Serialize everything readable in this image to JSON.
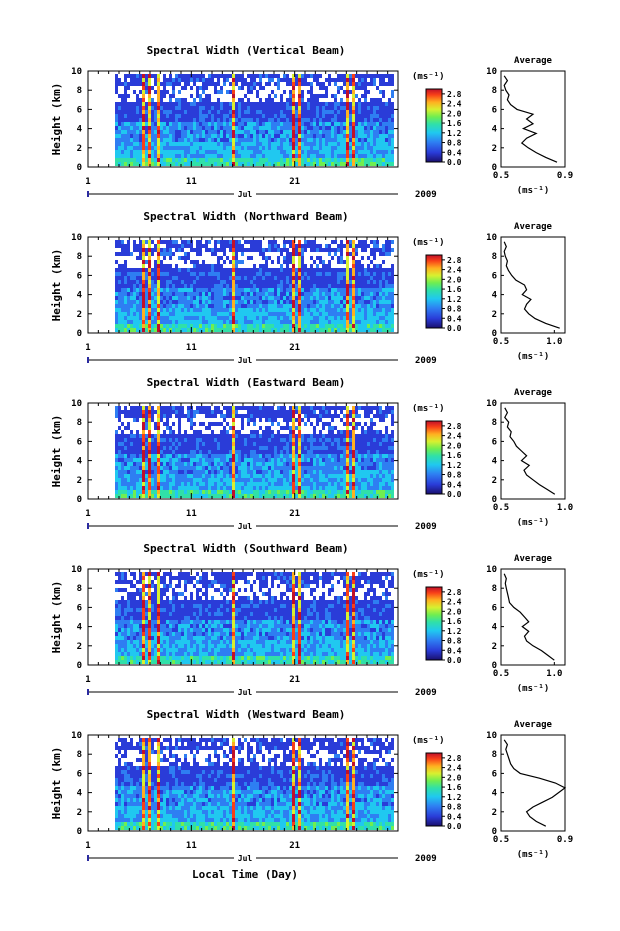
{
  "figure": {
    "year": "2009",
    "month": "Jul",
    "x_axis_title": "Local Time (Day)",
    "y_axis_title": "Height (km)",
    "colorbar_unit": "(ms⁻¹)",
    "average_title": "Average",
    "average_unit": "(ms⁻¹)"
  },
  "chart_data": [
    {
      "type": "heatmap",
      "title": "Spectral Width (Vertical Beam)",
      "xlabel": "",
      "ylabel": "Height (km)",
      "xlim": [
        1,
        31
      ],
      "ylim": [
        0,
        10
      ],
      "x_ticks": [
        "1",
        "11",
        "21"
      ],
      "y_ticks": [
        "0",
        "2",
        "4",
        "6",
        "8",
        "10"
      ],
      "colorbar_ticks": [
        "0.0",
        "0.4",
        "0.8",
        "1.2",
        "1.6",
        "2.0",
        "2.4",
        "2.8"
      ],
      "colorbar_range": [
        0,
        3.0
      ],
      "average_profile": {
        "type": "line",
        "title": "Average",
        "xlim": [
          0.5,
          0.9
        ],
        "x_ticks": [
          "0.5",
          "0.9"
        ],
        "xlabel": "(ms⁻¹)",
        "height": [
          0.5,
          1,
          1.5,
          2,
          2.5,
          3,
          3.5,
          4,
          4.5,
          5,
          5.5,
          6,
          6.5,
          7,
          7.5,
          8,
          8.5,
          9,
          9.5
        ],
        "value": [
          0.85,
          0.78,
          0.72,
          0.67,
          0.63,
          0.66,
          0.72,
          0.64,
          0.7,
          0.66,
          0.7,
          0.6,
          0.56,
          0.54,
          0.55,
          0.53,
          0.52,
          0.54,
          0.52
        ]
      }
    },
    {
      "type": "heatmap",
      "title": "Spectral Width (Northward Beam)",
      "xlabel": "",
      "ylabel": "Height (km)",
      "xlim": [
        1,
        31
      ],
      "ylim": [
        0,
        10
      ],
      "x_ticks": [
        "1",
        "11",
        "21"
      ],
      "y_ticks": [
        "0",
        "2",
        "4",
        "6",
        "8",
        "10"
      ],
      "colorbar_ticks": [
        "0.0",
        "0.4",
        "0.8",
        "1.2",
        "1.6",
        "2.0",
        "2.4",
        "2.8"
      ],
      "colorbar_range": [
        0,
        3.0
      ],
      "average_profile": {
        "type": "line",
        "title": "Average",
        "xlim": [
          0.5,
          1.1
        ],
        "x_ticks": [
          "0.5",
          "1.0"
        ],
        "xlabel": "(ms⁻¹)",
        "height": [
          0.5,
          1,
          1.5,
          2,
          2.5,
          3,
          3.5,
          4,
          4.5,
          5,
          5.5,
          6,
          6.5,
          7,
          7.5,
          8,
          8.5,
          9,
          9.5
        ],
        "value": [
          1.05,
          0.92,
          0.82,
          0.76,
          0.72,
          0.74,
          0.78,
          0.7,
          0.74,
          0.72,
          0.64,
          0.6,
          0.57,
          0.55,
          0.56,
          0.54,
          0.53,
          0.55,
          0.53
        ]
      }
    },
    {
      "type": "heatmap",
      "title": "Spectral Width (Eastward Beam)",
      "xlabel": "",
      "ylabel": "Height (km)",
      "xlim": [
        1,
        31
      ],
      "ylim": [
        0,
        10
      ],
      "x_ticks": [
        "1",
        "11",
        "21"
      ],
      "y_ticks": [
        "0",
        "2",
        "4",
        "6",
        "8",
        "10"
      ],
      "colorbar_ticks": [
        "0.0",
        "0.4",
        "0.8",
        "1.2",
        "1.6",
        "2.0",
        "2.4",
        "2.8"
      ],
      "colorbar_range": [
        0,
        3.0
      ],
      "average_profile": {
        "type": "line",
        "title": "Average",
        "xlim": [
          0.5,
          1.0
        ],
        "x_ticks": [
          "0.5",
          "1.0"
        ],
        "xlabel": "(ms⁻¹)",
        "height": [
          0.5,
          1,
          1.5,
          2,
          2.5,
          3,
          3.5,
          4,
          4.5,
          5,
          5.5,
          6,
          6.5,
          7,
          7.5,
          8,
          8.5,
          9,
          9.5
        ],
        "value": [
          0.92,
          0.86,
          0.8,
          0.75,
          0.7,
          0.68,
          0.72,
          0.66,
          0.7,
          0.66,
          0.62,
          0.6,
          0.57,
          0.58,
          0.55,
          0.56,
          0.53,
          0.55,
          0.53
        ]
      }
    },
    {
      "type": "heatmap",
      "title": "Spectral Width (Southward Beam)",
      "xlabel": "",
      "ylabel": "Height (km)",
      "xlim": [
        1,
        31
      ],
      "ylim": [
        0,
        10
      ],
      "x_ticks": [
        "1",
        "11",
        "21"
      ],
      "y_ticks": [
        "0",
        "2",
        "4",
        "6",
        "8",
        "10"
      ],
      "colorbar_ticks": [
        "0.0",
        "0.4",
        "0.8",
        "1.2",
        "1.6",
        "2.0",
        "2.4",
        "2.8"
      ],
      "colorbar_range": [
        0,
        3.0
      ],
      "average_profile": {
        "type": "line",
        "title": "Average",
        "xlim": [
          0.5,
          1.1
        ],
        "x_ticks": [
          "0.5",
          "1.0"
        ],
        "xlabel": "(ms⁻¹)",
        "height": [
          0.5,
          1,
          1.5,
          2,
          2.5,
          3,
          3.5,
          4,
          4.5,
          5,
          5.5,
          6,
          6.5,
          7,
          7.5,
          8,
          8.5,
          9,
          9.5
        ],
        "value": [
          1.0,
          0.94,
          0.88,
          0.8,
          0.74,
          0.72,
          0.76,
          0.7,
          0.76,
          0.72,
          0.68,
          0.62,
          0.58,
          0.57,
          0.56,
          0.55,
          0.54,
          0.55,
          0.53
        ]
      }
    },
    {
      "type": "heatmap",
      "title": "Spectral Width (Westward Beam)",
      "xlabel": "Local Time (Day)",
      "ylabel": "Height (km)",
      "xlim": [
        1,
        31
      ],
      "ylim": [
        0,
        10
      ],
      "x_ticks": [
        "1",
        "11",
        "21"
      ],
      "y_ticks": [
        "0",
        "2",
        "4",
        "6",
        "8",
        "10"
      ],
      "colorbar_ticks": [
        "0.0",
        "0.4",
        "0.8",
        "1.2",
        "1.6",
        "2.0",
        "2.4",
        "2.8"
      ],
      "colorbar_range": [
        0,
        3.0
      ],
      "average_profile": {
        "type": "line",
        "title": "Average",
        "xlim": [
          0.5,
          0.9
        ],
        "x_ticks": [
          "0.5",
          "0.9"
        ],
        "xlabel": "(ms⁻¹)",
        "height": [
          0.5,
          1,
          1.5,
          2,
          2.5,
          3,
          3.5,
          4,
          4.5,
          5,
          5.5,
          6,
          6.5,
          7,
          7.5,
          8,
          8.5,
          9,
          9.5
        ],
        "value": [
          0.78,
          0.72,
          0.68,
          0.66,
          0.7,
          0.76,
          0.82,
          0.86,
          0.9,
          0.84,
          0.74,
          0.62,
          0.58,
          0.56,
          0.55,
          0.54,
          0.53,
          0.54,
          0.52
        ]
      }
    }
  ]
}
